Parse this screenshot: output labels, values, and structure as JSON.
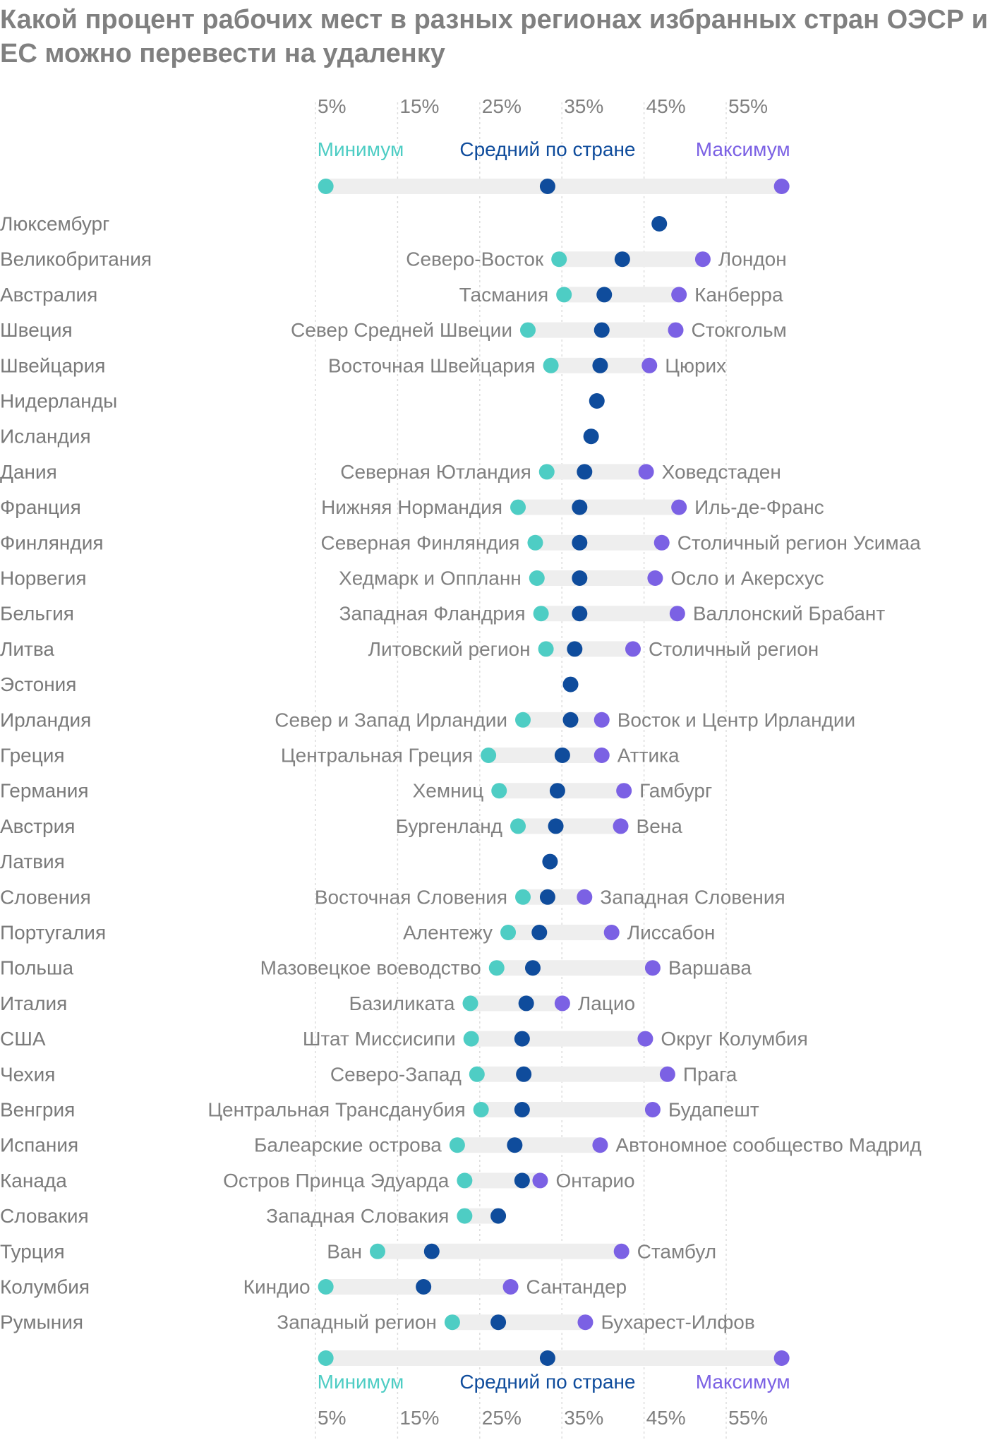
{
  "chart_data": {
    "type": "dot",
    "title": "Какой процент рабочих мест в разных регионах избранных стран ОЭСР и ЕС можно перевести на удаленку",
    "xlabel": "",
    "ylabel": "",
    "xlim": [
      1,
      65
    ],
    "xticks": [
      5,
      15,
      25,
      35,
      45,
      55
    ],
    "xtick_labels": [
      "5%",
      "15%",
      "25%",
      "35%",
      "45%",
      "55%"
    ],
    "grid": true,
    "legend": {
      "position": "top-and-bottom",
      "min_label": "Минимум",
      "avg_label": "Средний по стране",
      "max_label": "Максимум",
      "min_value": 6,
      "avg_value": 33,
      "max_value": 61.5
    },
    "colors": {
      "min": "#4ECDC4",
      "avg": "#0F4C9C",
      "max": "#7B61E4",
      "track": "#EEEEEE",
      "grid": "#DDDDDD",
      "label": "#808080",
      "country": "#7A7A7A"
    },
    "series": [
      {
        "country": "Люксембург",
        "min": null,
        "min_region": "",
        "avg": 46.6,
        "max": null,
        "max_region": ""
      },
      {
        "country": "Великобритания",
        "min": 34.4,
        "min_region": "Северо-Восток",
        "avg": 42.1,
        "max": 51.9,
        "max_region": "Лондон"
      },
      {
        "country": "Австралия",
        "min": 35.0,
        "min_region": "Тасмания",
        "avg": 39.9,
        "max": 49.0,
        "max_region": "Канберра"
      },
      {
        "country": "Швеция",
        "min": 30.6,
        "min_region": "Север Средней Швеции",
        "avg": 39.6,
        "max": 48.6,
        "max_region": "Стокгольм"
      },
      {
        "country": "Швейцария",
        "min": 33.4,
        "min_region": "Восточная Швейцария",
        "avg": 39.4,
        "max": 45.4,
        "max_region": "Цюрих"
      },
      {
        "country": "Нидерланды",
        "min": null,
        "min_region": "",
        "avg": 39.0,
        "max": null,
        "max_region": ""
      },
      {
        "country": "Исландия",
        "min": null,
        "min_region": "",
        "avg": 38.3,
        "max": null,
        "max_region": ""
      },
      {
        "country": "Дания",
        "min": 32.9,
        "min_region": "Северная Ютландия",
        "avg": 37.5,
        "max": 45.0,
        "max_region": "Ховедстаден"
      },
      {
        "country": "Франция",
        "min": 29.4,
        "min_region": "Нижняя Нормандия",
        "avg": 36.9,
        "max": 49.0,
        "max_region": "Иль-де-Франс"
      },
      {
        "country": "Финляндия",
        "min": 31.5,
        "min_region": "Северная Финляндия",
        "avg": 36.9,
        "max": 46.9,
        "max_region": "Столичный регион Усимаа"
      },
      {
        "country": "Норвегия",
        "min": 31.7,
        "min_region": "Хедмарк и Оппланн",
        "avg": 36.9,
        "max": 46.1,
        "max_region": "Осло и Акерсхус"
      },
      {
        "country": "Бельгия",
        "min": 32.2,
        "min_region": "Западная Фландрия",
        "avg": 36.9,
        "max": 48.8,
        "max_region": "Валлонский Брабант"
      },
      {
        "country": "Литва",
        "min": 32.8,
        "min_region": "Литовский регион",
        "avg": 36.3,
        "max": 43.4,
        "max_region": "Столичный регион"
      },
      {
        "country": "Эстония",
        "min": null,
        "min_region": "",
        "avg": 35.8,
        "max": null,
        "max_region": ""
      },
      {
        "country": "Ирландия",
        "min": 30.0,
        "min_region": "Север и Запад Ирландии",
        "avg": 35.8,
        "max": 39.6,
        "max_region": "Восток и Центр Ирландии"
      },
      {
        "country": "Греция",
        "min": 25.8,
        "min_region": "Центральная Греция",
        "avg": 34.8,
        "max": 39.6,
        "max_region": "Аттика"
      },
      {
        "country": "Германия",
        "min": 27.1,
        "min_region": "Хемниц",
        "avg": 34.2,
        "max": 42.3,
        "max_region": "Гамбург"
      },
      {
        "country": "Австрия",
        "min": 29.4,
        "min_region": "Бургенланд",
        "avg": 34.0,
        "max": 41.9,
        "max_region": "Вена"
      },
      {
        "country": "Латвия",
        "min": null,
        "min_region": "",
        "avg": 33.3,
        "max": null,
        "max_region": ""
      },
      {
        "country": "Словения",
        "min": 30.0,
        "min_region": "Восточная Словения",
        "avg": 33.0,
        "max": 37.5,
        "max_region": "Западная Словения"
      },
      {
        "country": "Португалия",
        "min": 28.2,
        "min_region": "Алентежу",
        "avg": 32.0,
        "max": 40.8,
        "max_region": "Лиссабон"
      },
      {
        "country": "Польша",
        "min": 26.8,
        "min_region": "Мазовецкое воеводство",
        "avg": 31.2,
        "max": 45.8,
        "max_region": "Варшава"
      },
      {
        "country": "Италия",
        "min": 23.6,
        "min_region": "Базиликата",
        "avg": 30.4,
        "max": 34.8,
        "max_region": "Лацио"
      },
      {
        "country": "США",
        "min": 23.7,
        "min_region": "Штат Миссисипи",
        "avg": 29.9,
        "max": 44.9,
        "max_region": "Округ Колумбия"
      },
      {
        "country": "Чехия",
        "min": 24.4,
        "min_region": "Северо-Запад",
        "avg": 30.1,
        "max": 47.6,
        "max_region": "Прага"
      },
      {
        "country": "Венгрия",
        "min": 24.9,
        "min_region": "Центральная Трансданубия",
        "avg": 29.9,
        "max": 45.8,
        "max_region": "Будапешт"
      },
      {
        "country": "Испания",
        "min": 22.0,
        "min_region": "Балеарские острова",
        "avg": 29.0,
        "max": 39.4,
        "max_region": "Автономное сообщество Мадрид"
      },
      {
        "country": "Канада",
        "min": 22.9,
        "min_region": "Остров Принца Эдуарда",
        "avg": 29.9,
        "max": 32.1,
        "max_region": "Онтарио"
      },
      {
        "country": "Словакия",
        "min": 22.9,
        "min_region": "Западная Словакия",
        "avg": 27.0,
        "max": null,
        "max_region": ""
      },
      {
        "country": "Турция",
        "min": 12.3,
        "min_region": "Ван",
        "avg": 18.9,
        "max": 42.0,
        "max_region": "Стамбул"
      },
      {
        "country": "Колумбия",
        "min": 6.0,
        "min_region": "Киндио",
        "avg": 17.9,
        "max": 28.5,
        "max_region": "Сантандер"
      },
      {
        "country": "Румыния",
        "min": 21.4,
        "min_region": "Западный регион",
        "avg": 27.0,
        "max": 37.6,
        "max_region": "Бухарест-Илфов"
      }
    ]
  }
}
